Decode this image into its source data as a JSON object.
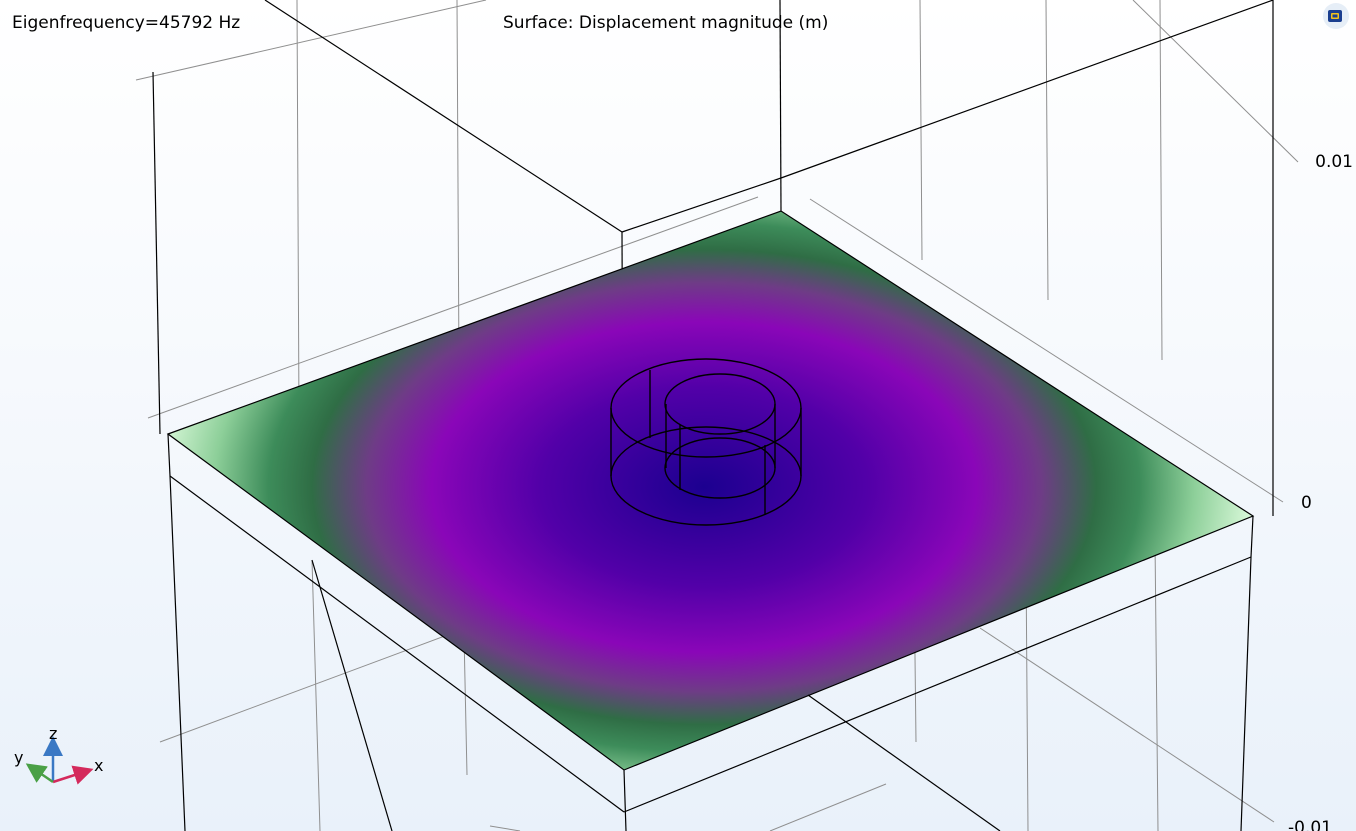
{
  "plot": {
    "eigenfrequency_label": "Eigenfrequency=45792 Hz",
    "surface_title": "Surface: Displacement magnitude (m)",
    "z_ticks": [
      "0.01",
      "0",
      "-0.01"
    ]
  },
  "triad": {
    "x_label": "x",
    "y_label": "y",
    "z_label": "z"
  },
  "colors": {
    "center": "#1c0090",
    "mid": "#8a06b8",
    "ring": "#3d8c5a",
    "edge": "#d3f5d4",
    "grid": "#8f8f8f",
    "outline": "#000000"
  },
  "icons": {
    "view_logo": "comsol-logo-icon"
  }
}
